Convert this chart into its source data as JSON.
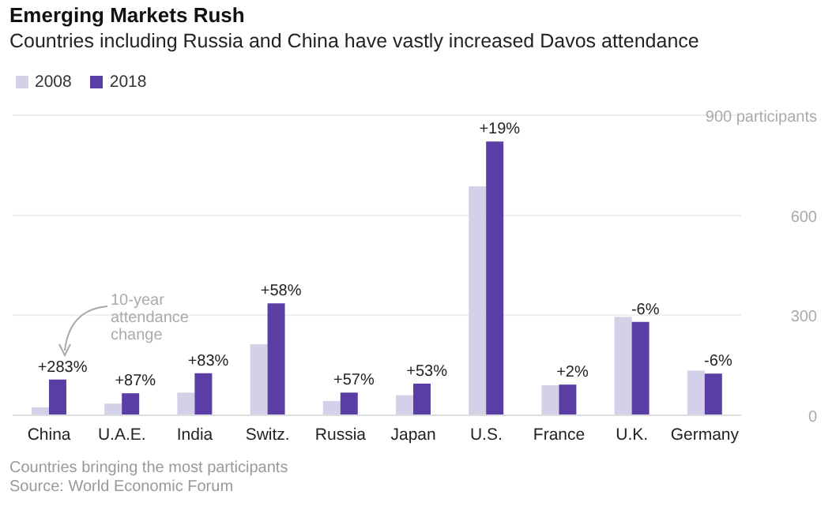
{
  "chart_data": {
    "type": "bar",
    "title": "Emerging Markets Rush",
    "subtitle": "Countries including Russia and China have vastly increased Davos attendance",
    "categories": [
      "China",
      "U.A.E.",
      "India",
      "Switz.",
      "Russia",
      "Japan",
      "U.S.",
      "France",
      "U.K.",
      "Germany"
    ],
    "series": [
      {
        "name": "2008",
        "color": "#d4d0e8",
        "values": [
          24,
          35,
          68,
          213,
          43,
          60,
          687,
          90,
          295,
          134
        ]
      },
      {
        "name": "2018",
        "color": "#5a3ea6",
        "values": [
          107,
          66,
          126,
          336,
          68,
          95,
          821,
          92,
          280,
          125
        ]
      }
    ],
    "ylim": [
      0,
      900
    ],
    "yticks": [
      0,
      300,
      600,
      {
        "value": 900,
        "label": "900 participants"
      }
    ],
    "grid": "y",
    "legend": "top left",
    "annotations": [
      "10-year attendance change",
      "Countries bringing the most participants",
      "Source: World Economic Forum",
      {
        "text": "+283%",
        "x": "China",
        "y": 107
      },
      {
        "text": "+87%",
        "x": "U.A.E.",
        "y": 66
      },
      {
        "text": "+83%",
        "x": "India",
        "y": 126
      },
      {
        "text": "+58%",
        "x": "Switz.",
        "y": 336
      },
      {
        "text": "+57%",
        "x": "Russia",
        "y": 68
      },
      {
        "text": "+53%",
        "x": "Japan",
        "y": 95
      },
      {
        "text": "+19%",
        "x": "U.S.",
        "y": 821
      },
      {
        "text": "+2%",
        "x": "France",
        "y": 92
      },
      {
        "text": "-6%",
        "x": "U.K.",
        "y": 280
      },
      {
        "text": "-6%",
        "x": "Germany",
        "y": 125
      }
    ]
  }
}
